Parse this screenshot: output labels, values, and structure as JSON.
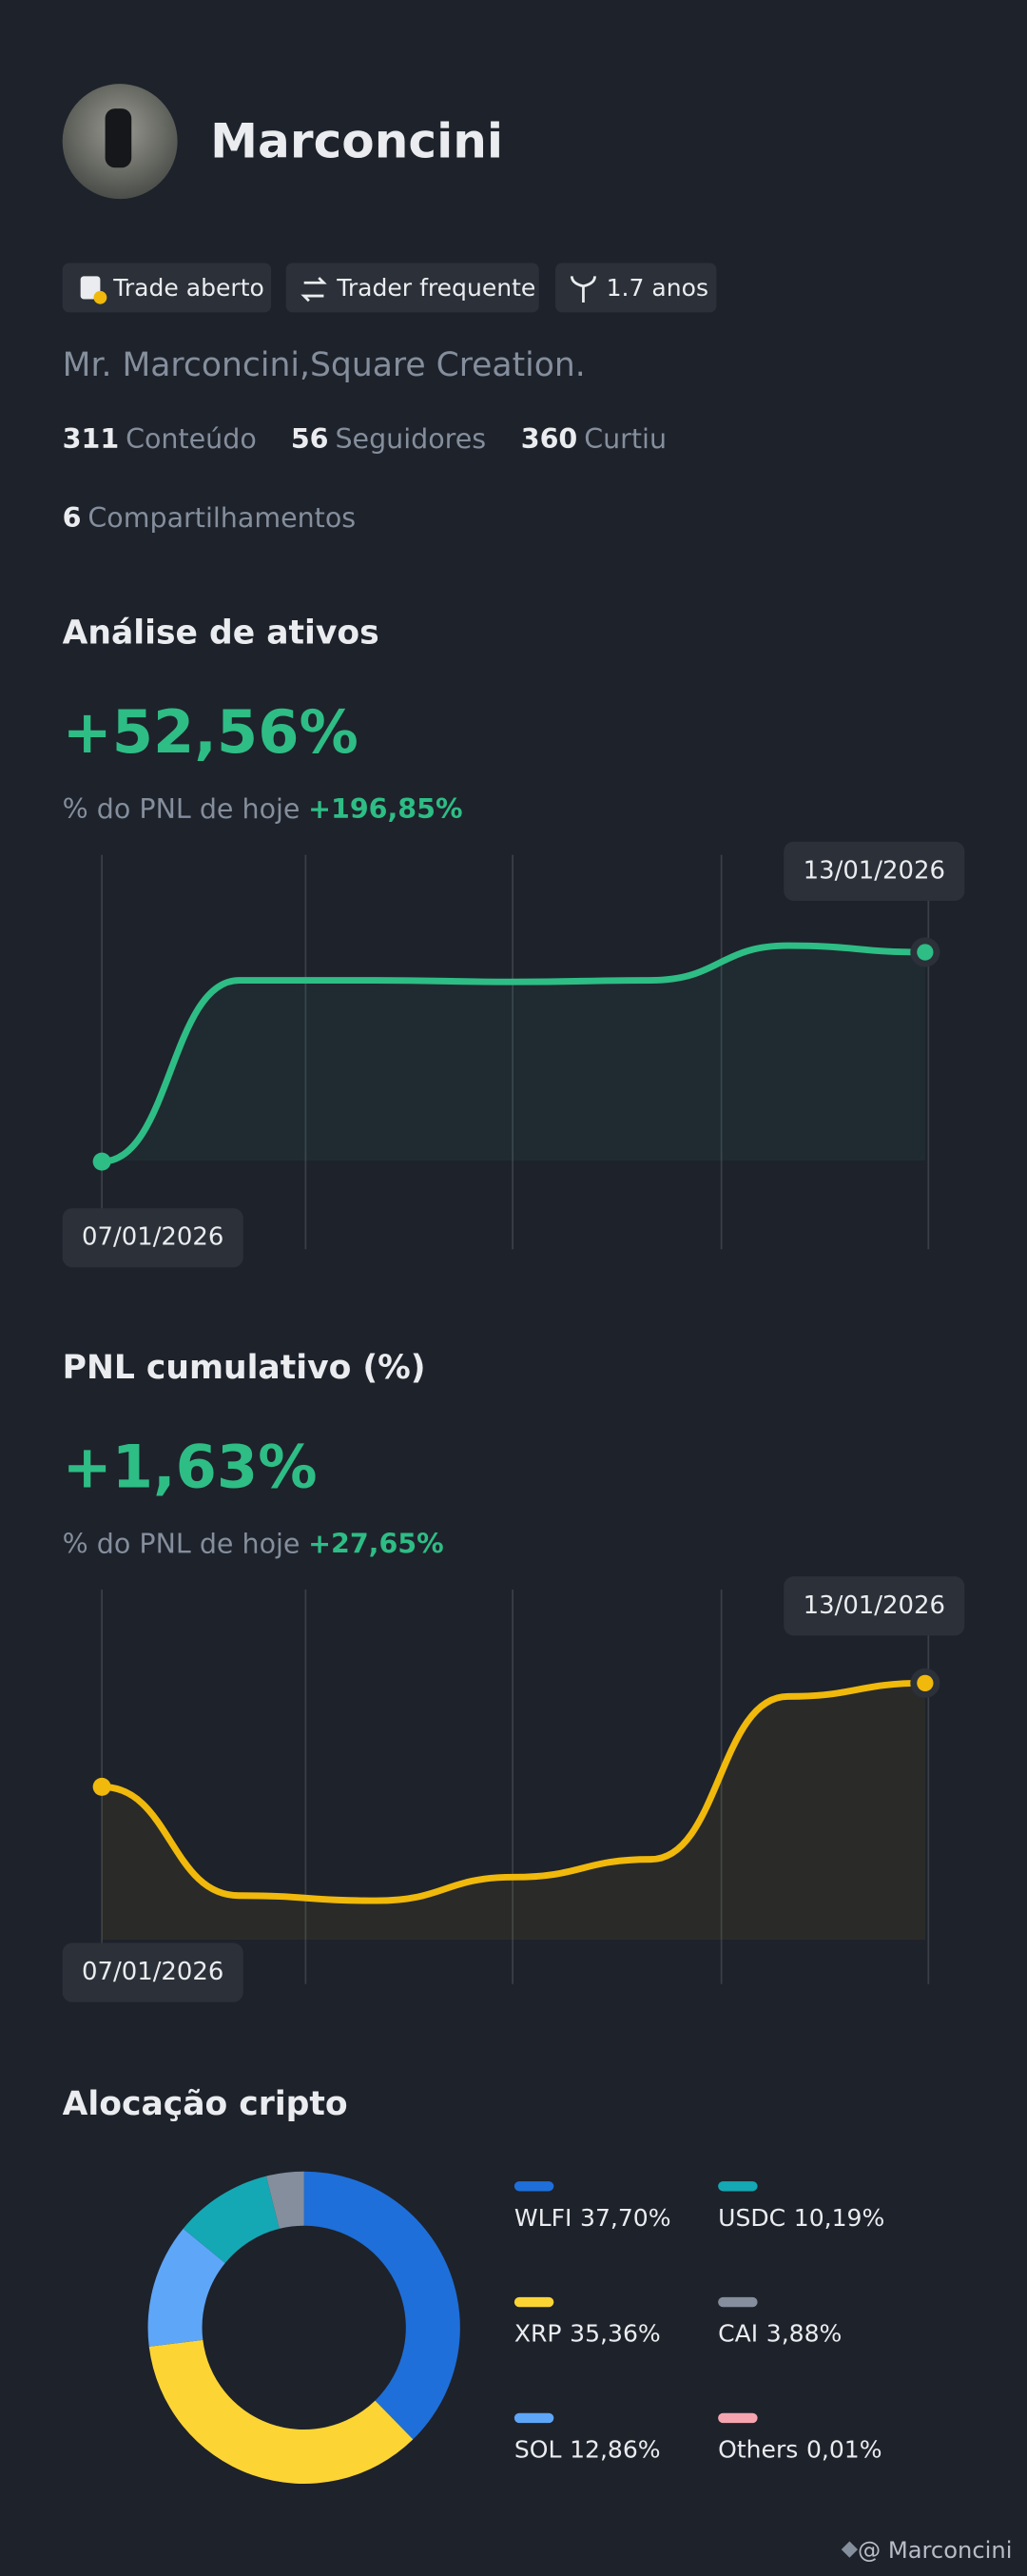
{
  "profile": {
    "name": "Marconcini",
    "badges": [
      "Trade aberto",
      "Trader frequente",
      "1.7 anos"
    ],
    "bio": "Mr. Marconcini,Square Creation.",
    "stats": [
      {
        "value": 311,
        "label": "Conteúdo"
      },
      {
        "value": 56,
        "label": "Seguidores"
      },
      {
        "value": 360,
        "label": "Curtiu"
      },
      {
        "value": 6,
        "label": "Compartilhamentos"
      }
    ]
  },
  "chart_data": [
    {
      "type": "line",
      "title": "Análise de ativos",
      "headline": "+52,56%",
      "subtitle": "% do PNL de hoje",
      "subtitle_value": "+196,85%",
      "categories": [
        "07/01/2026",
        null,
        null,
        null,
        null,
        null,
        "13/01/2026"
      ],
      "series": [
        {
          "color": "#2ebd85",
          "values": [
            0,
            45.5,
            45.5,
            45.1,
            45.5,
            54.2,
            52.56
          ]
        }
      ],
      "ylim": [
        -22,
        77
      ]
    },
    {
      "type": "line",
      "title": "PNL cumulativo (%)",
      "headline": "+1,63%",
      "subtitle": "% do PNL de hoje",
      "subtitle_value": "+27,65%",
      "categories": [
        "07/01/2026",
        null,
        null,
        null,
        null,
        null,
        "13/01/2026"
      ],
      "series": [
        {
          "color": "#f0b90b",
          "values": [
            0,
            -1.71,
            -1.79,
            -1.42,
            -1.14,
            1.42,
            1.63
          ]
        }
      ],
      "ylim": [
        -3.1,
        3.1
      ]
    },
    {
      "type": "pie",
      "title": "Alocação cripto",
      "categories": [
        "WLFI",
        "XRP",
        "SOL",
        "USDC",
        "CAI",
        "Others"
      ],
      "values": [
        37.7,
        35.36,
        12.86,
        10.19,
        3.88,
        0.01
      ],
      "value_labels": [
        "37,70%",
        "35,36%",
        "12,86%",
        "10,19%",
        "3,88%",
        "0,01%"
      ],
      "colors": [
        "#1e6fd9",
        "#fcd535",
        "#5ea6f7",
        "#14a8b4",
        "#848e9c",
        "#f6a5b0"
      ]
    }
  ],
  "footer": "@ Marconcini"
}
